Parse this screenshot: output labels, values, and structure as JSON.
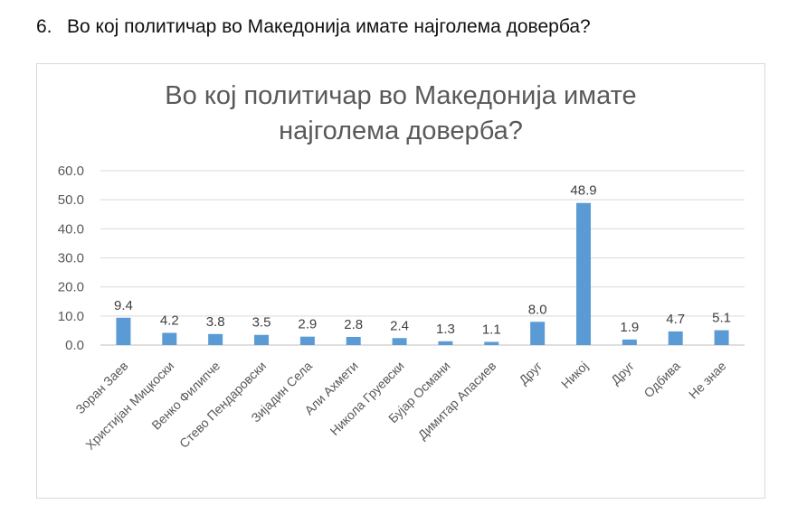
{
  "question": {
    "number": "6.",
    "text": "Во кој политичар во Македонија имате најголема доверба?"
  },
  "chart_data": {
    "type": "bar",
    "title_line1": "Во кој политичар во Македонија имате",
    "title_line2": "најголема доверба?",
    "categories": [
      "Зоран Заев",
      "Христијан Мицкоски",
      "Венко Филипче",
      "Стево Пендаровски",
      "Зијадин Села",
      "Али Ахмети",
      "Никола Груевски",
      "Бујар Османи",
      "Димитар Апасиев",
      "Друг",
      "Никој",
      "Друг",
      "Одбива",
      "Не знае"
    ],
    "values": [
      9.4,
      4.2,
      3.8,
      3.5,
      2.9,
      2.8,
      2.4,
      1.3,
      1.1,
      8.0,
      48.9,
      1.9,
      4.7,
      5.1
    ],
    "value_labels": [
      "9.4",
      "4.2",
      "3.8",
      "3.5",
      "2.9",
      "2.8",
      "2.4",
      "1.3",
      "1.1",
      "8.0",
      "48.9",
      "1.9",
      "4.7",
      "5.1"
    ],
    "ylim": [
      0,
      60
    ],
    "yticks": [
      "0.0",
      "10.0",
      "20.0",
      "30.0",
      "40.0",
      "50.0",
      "60.0"
    ],
    "bar_color": "#5b9bd5",
    "gridlines": true
  }
}
